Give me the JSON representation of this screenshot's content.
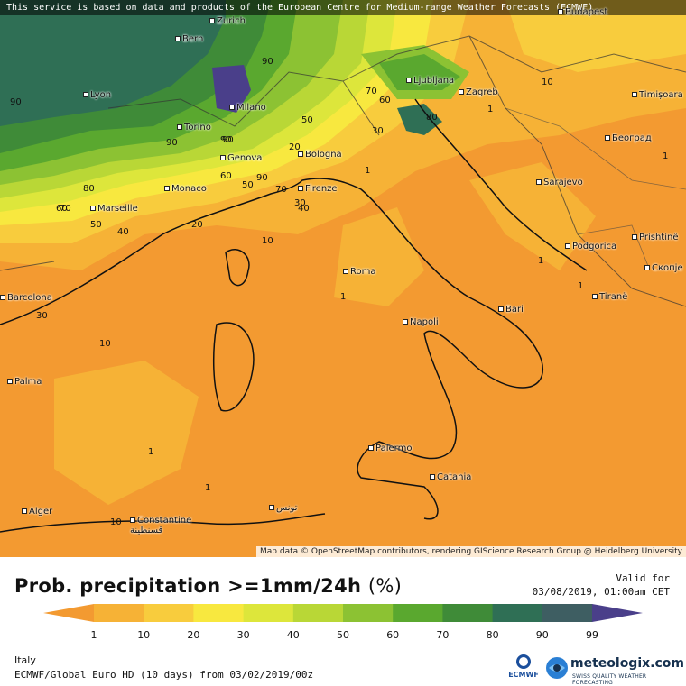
{
  "banner": "This service is based on data and products of the European Centre for Medium-range Weather Forecasts (ECMWF)",
  "attribution": "Map data © OpenStreetMap contributors, rendering GIScience Research Group @ Heidelberg University",
  "cities": [
    "Zurich",
    "Budapest",
    "Bern",
    "Lyon",
    "Milano",
    "Torino",
    "Ljubljana",
    "Zagreb",
    "Timișoara",
    "Београд",
    "Genova",
    "Bologna",
    "Monaco",
    "Firenze",
    "Marseille",
    "Sarajevo",
    "Podgorica",
    "Prishtinë",
    "Скопје",
    "Roma",
    "Bari",
    "Tiranë",
    "Napoli",
    "Barcelona",
    "Palma",
    "Palermo",
    "Catania",
    "Alger",
    "Constantine\nقسنطينة",
    "تونس"
  ],
  "contour_labels": [
    "90",
    "90",
    "90",
    "90",
    "70",
    "60",
    "50",
    "30",
    "20",
    "90",
    "80",
    "70",
    "60",
    "50",
    "40",
    "30",
    "20",
    "10",
    "10",
    "10",
    "1",
    "1",
    "1",
    "1",
    "1",
    "1",
    "60",
    "90",
    "80",
    "70",
    "50",
    "40",
    "30",
    "10",
    "1",
    "1"
  ],
  "title": "Prob. precipitation >=1mm/24h",
  "title_unit": "(%)",
  "valid_label": "Valid for",
  "valid_time": "03/08/2019, 01:00am CET",
  "scale": {
    "ticks": [
      "1",
      "10",
      "20",
      "30",
      "40",
      "50",
      "60",
      "70",
      "80",
      "90",
      "99"
    ],
    "colors": [
      "#f39a31",
      "#f6b236",
      "#f8cc3d",
      "#f8e83f",
      "#dde63b",
      "#b9d736",
      "#8cc233",
      "#5aa82f",
      "#3f8b38",
      "#2f6f55",
      "#3e5e62",
      "#4a3f8a"
    ]
  },
  "region": "Italy",
  "run": "ECMWF/Global Euro HD (10 days) from 03/02/2019/00z",
  "logos": {
    "ecmwf": "ECMWF",
    "brand": "meteologix.com",
    "tagline": "SWISS QUALITY WEATHER FORECASTING"
  }
}
